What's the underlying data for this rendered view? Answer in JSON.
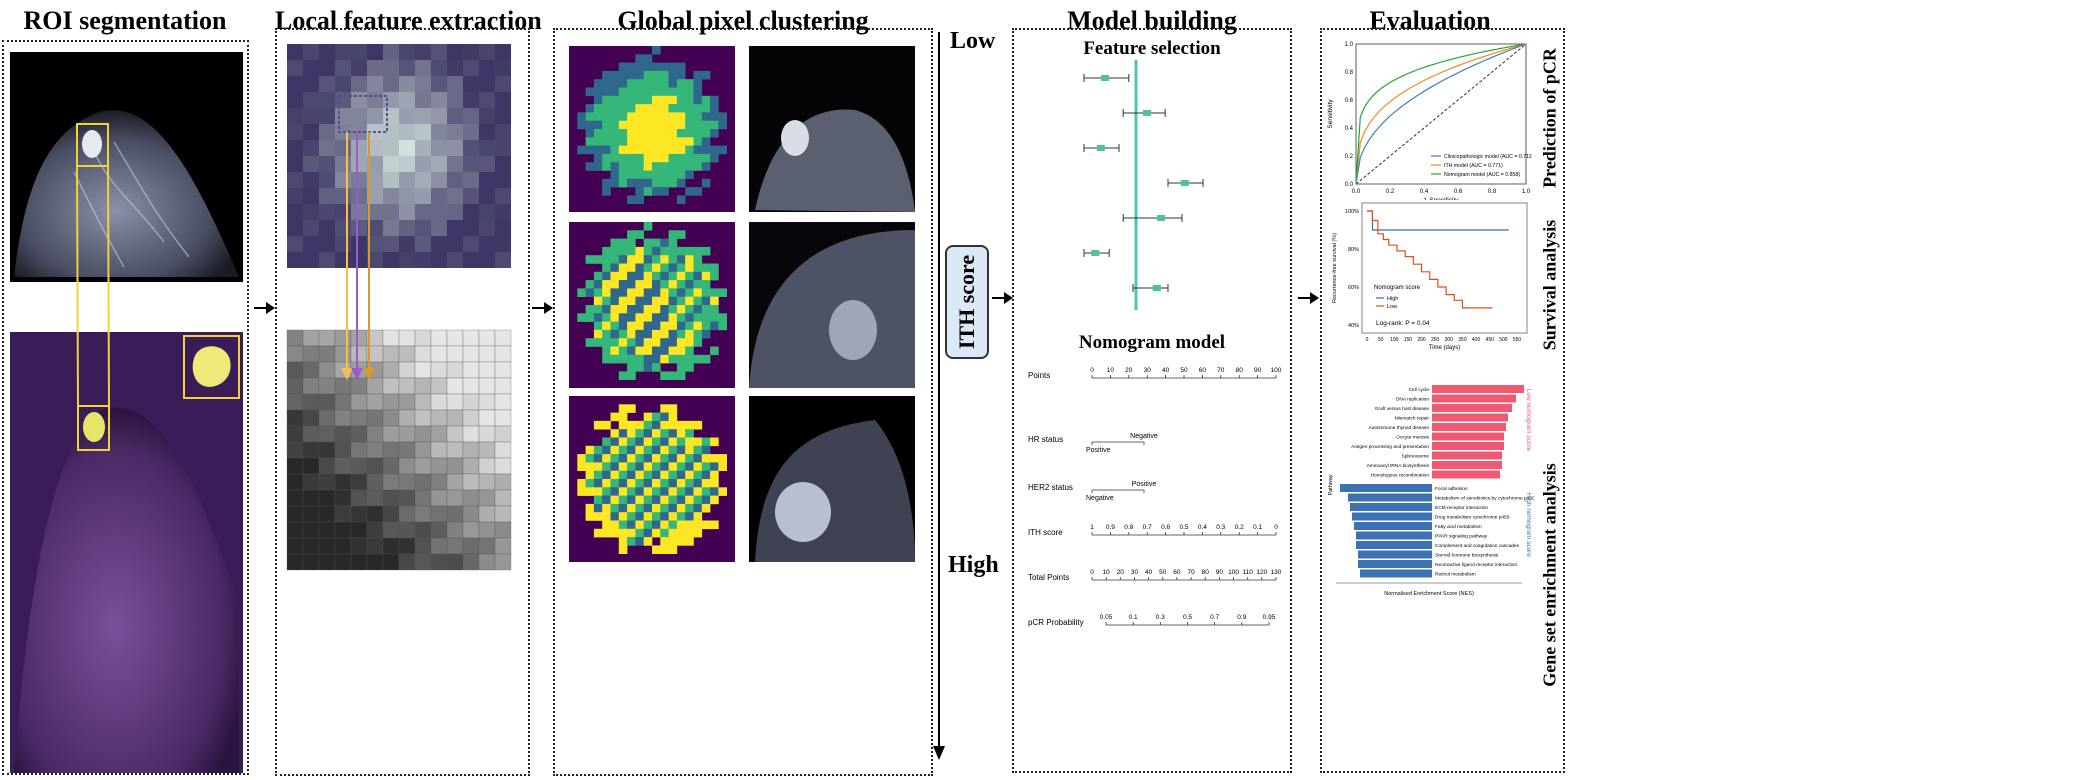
{
  "sections": {
    "roi": "ROI segmentation",
    "local": "Local feature extraction",
    "global": "Global pixel clustering",
    "model": "Model building",
    "eval": "Evaluation"
  },
  "gradient": {
    "low": "Low",
    "high": "High",
    "ith_label": "ITH score"
  },
  "model": {
    "feature_selection": "Feature selection",
    "nomogram_title": "Nomogram model",
    "rows": [
      {
        "label": "Points",
        "ticks": [
          "0",
          "10",
          "20",
          "30",
          "40",
          "50",
          "60",
          "70",
          "80",
          "90",
          "100"
        ]
      },
      {
        "label": "HR status",
        "top": "Negative",
        "bottom": "Positive"
      },
      {
        "label": "HER2 status",
        "top": "Positive",
        "bottom": "Negative"
      },
      {
        "label": "ITH score",
        "ticks": [
          "1",
          "0.9",
          "0.8",
          "0.7",
          "0.6",
          "0.5",
          "0.4",
          "0.3",
          "0.2",
          "0.1",
          "0"
        ]
      },
      {
        "label": "Total Points",
        "ticks": [
          "0",
          "10",
          "20",
          "30",
          "40",
          "50",
          "60",
          "70",
          "80",
          "90",
          "100",
          "110",
          "120",
          "130"
        ]
      },
      {
        "label": "pCR Probability",
        "ticks": [
          "0.05",
          "0.1",
          "0.3",
          "0.5",
          "0.7",
          "0.9",
          "0.95"
        ]
      }
    ]
  },
  "forest": {
    "points": [
      {
        "est": 0.15,
        "lo": 0.0,
        "hi": 0.32
      },
      {
        "est": 0.45,
        "lo": 0.28,
        "hi": 0.58
      },
      {
        "est": 0.12,
        "lo": 0.0,
        "hi": 0.25
      },
      {
        "est": 0.72,
        "lo": 0.6,
        "hi": 0.85
      },
      {
        "est": 0.55,
        "lo": 0.28,
        "hi": 0.7
      },
      {
        "est": 0.08,
        "lo": 0.0,
        "hi": 0.18
      },
      {
        "est": 0.52,
        "lo": 0.35,
        "hi": 0.6
      }
    ]
  },
  "eval": {
    "roc": {
      "side": "Prediction of pCR",
      "ylabel": "Sensitivity",
      "xlabel": "1-Specificity",
      "ticks": [
        "0.0",
        "0.2",
        "0.4",
        "0.6",
        "0.8",
        "1.0"
      ],
      "legend": [
        {
          "name": "Clinicopathologic model (AUC = 0.712)",
          "color": "#3c7fc3"
        },
        {
          "name": "ITH model (AUC = 0.771)",
          "color": "#f08a24"
        },
        {
          "name": "Nomogram model (AUC = 0.858)",
          "color": "#22a83a"
        }
      ]
    },
    "km": {
      "side": "Survival analysis",
      "ylabel": "Recurrence-free survival (%)",
      "xlabel": "Time (days)",
      "yticks": [
        "40%",
        "60%",
        "80%",
        "100%"
      ],
      "xticks": [
        "0",
        "50",
        "100",
        "150",
        "200",
        "250",
        "300",
        "350",
        "400",
        "450",
        "500",
        "550"
      ],
      "legend_title": "Nomogram score",
      "legend": [
        {
          "name": "High",
          "color": "#2a6fd0"
        },
        {
          "name": "Low",
          "color": "#e0501a"
        }
      ],
      "logrank": "Log-rank: P = 0.04"
    },
    "gsea": {
      "side": "Gene set enrichment analysis",
      "ylabel": "Pathway",
      "xlabel": "Normalised Enrichment Score (NES)",
      "low_label": "Low nomogram score",
      "high_label": "High nomogram score",
      "low_color": "#ef5a73",
      "high_color": "#3c72b4",
      "low_pathways": [
        {
          "name": "Cell cycle",
          "nes": 2.3
        },
        {
          "name": "DNA replication",
          "nes": 2.1
        },
        {
          "name": "Graft versus host disease",
          "nes": 2.0
        },
        {
          "name": "Mismatch repair",
          "nes": 1.9
        },
        {
          "name": "Autoimmune thyroid disease",
          "nes": 1.85
        },
        {
          "name": "Oocyte meiosis",
          "nes": 1.8
        },
        {
          "name": "Antigen processing and presentation",
          "nes": 1.8
        },
        {
          "name": "Spliceosome",
          "nes": 1.75
        },
        {
          "name": "Aminoacyl tRNA biosynthesis",
          "nes": 1.75
        },
        {
          "name": "Homologous recombination",
          "nes": 1.7
        }
      ],
      "high_pathways": [
        {
          "name": "Focal adhesion",
          "nes": -2.3
        },
        {
          "name": "Metabolism of xenobiotics by cytochrome p450",
          "nes": -2.1
        },
        {
          "name": "ECM receptor interaction",
          "nes": -2.05
        },
        {
          "name": "Drug metabolism cytochrome p450",
          "nes": -2.0
        },
        {
          "name": "Fatty acid metabolism",
          "nes": -1.95
        },
        {
          "name": "PPAR signaling pathway",
          "nes": -1.9
        },
        {
          "name": "Complement and coagulation cascades",
          "nes": -1.9
        },
        {
          "name": "Steroid hormone biosynthesis",
          "nes": -1.85
        },
        {
          "name": "Neuroactive ligand receptor interaction",
          "nes": -1.85
        },
        {
          "name": "Retinol metabolism",
          "nes": -1.8
        }
      ]
    }
  }
}
